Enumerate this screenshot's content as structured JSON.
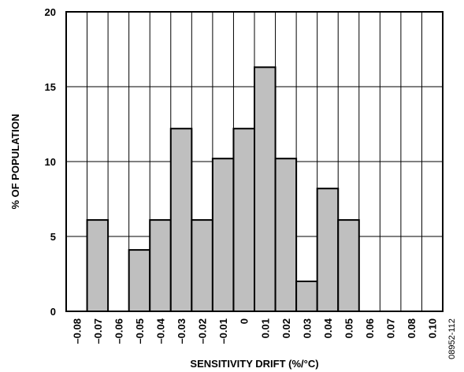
{
  "chart_data": {
    "type": "bar",
    "xlabel": "SENSITIVITY DRIFT (%/°C)",
    "ylabel": "% OF POPULATION",
    "ylim": [
      0,
      20
    ],
    "yticks": [
      "0",
      "5",
      "10",
      "15",
      "20"
    ],
    "categories": [
      "–0.08",
      "–0.07",
      "–0.06",
      "–0.05",
      "–0.04",
      "–0.03",
      "–0.02",
      "–0.01",
      "0",
      "0.01",
      "0.02",
      "0.03",
      "0.04",
      "0.05",
      "0.06",
      "0.07",
      "0.08",
      "0.10"
    ],
    "values": [
      0,
      6.1,
      0,
      4.1,
      6.1,
      12.2,
      6.1,
      10.2,
      12.2,
      16.3,
      10.2,
      2.0,
      8.2,
      6.1,
      0,
      0,
      0,
      0
    ],
    "bar_color": "#bfbfbf",
    "grid": true,
    "figure_id": "08952-112"
  }
}
